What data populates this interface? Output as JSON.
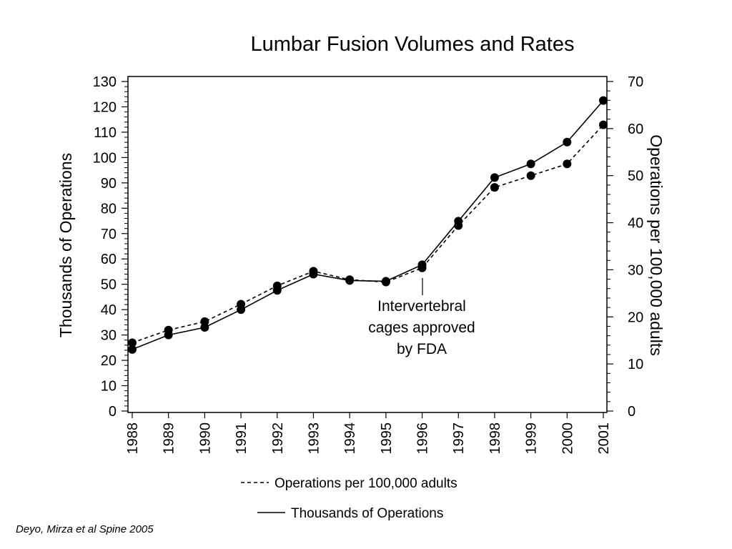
{
  "chart_data": {
    "type": "line",
    "title": "Lumbar Fusion Volumes and Rates",
    "ylabel_left": "Thousands of Operations",
    "ylabel_right": "Operations per 100,000 adults",
    "x": [
      "1988",
      "1989",
      "1990",
      "1991",
      "1992",
      "1993",
      "1994",
      "1995",
      "1996",
      "1997",
      "1998",
      "1999",
      "2000",
      "2001"
    ],
    "left_axis": {
      "ylim": [
        0,
        130
      ],
      "ticks": [
        0,
        10,
        20,
        30,
        40,
        50,
        60,
        70,
        80,
        90,
        100,
        110,
        120,
        130
      ]
    },
    "right_axis": {
      "ylim": [
        0,
        70
      ],
      "ticks": [
        0,
        10,
        20,
        30,
        40,
        50,
        60,
        70
      ]
    },
    "series": [
      {
        "name": "Operations per 100,000 adults",
        "axis": "right",
        "line_style": "dashed",
        "values": [
          14.5,
          17.2,
          19.0,
          22.7,
          26.6,
          29.7,
          27.9,
          27.4,
          30.4,
          39.4,
          47.5,
          50.0,
          52.5,
          60.8
        ]
      },
      {
        "name": "Thousands of Operations",
        "axis": "left",
        "line_style": "solid",
        "values": [
          24.3,
          30.0,
          33.0,
          40.0,
          47.6,
          54.0,
          51.5,
          51.2,
          57.7,
          74.9,
          92.1,
          97.5,
          106.1,
          122.5
        ]
      }
    ],
    "annotation": {
      "lines": [
        "Intervertebral",
        "cages approved",
        "by FDA"
      ],
      "x": "1996"
    },
    "grid": false,
    "legend_position": "bottom"
  },
  "citation": "Deyo, Mirza et al  Spine 2005"
}
